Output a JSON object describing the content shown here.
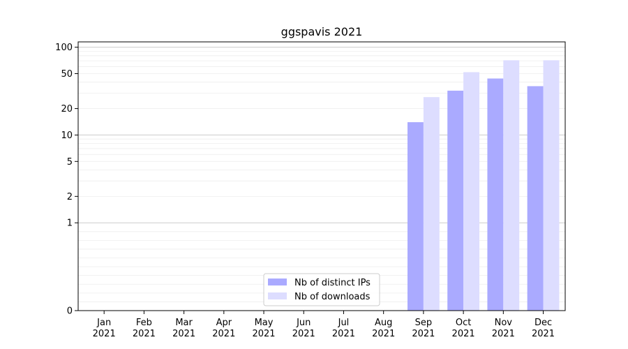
{
  "chart_data": {
    "type": "bar",
    "title": "ggspavis 2021",
    "xlabel": "",
    "ylabel": "",
    "y_scale": "symlog",
    "yticks": [
      0,
      1,
      2,
      5,
      10,
      20,
      50,
      100
    ],
    "categories": [
      {
        "month": "Jan",
        "year": "2021"
      },
      {
        "month": "Feb",
        "year": "2021"
      },
      {
        "month": "Mar",
        "year": "2021"
      },
      {
        "month": "Apr",
        "year": "2021"
      },
      {
        "month": "May",
        "year": "2021"
      },
      {
        "month": "Jun",
        "year": "2021"
      },
      {
        "month": "Jul",
        "year": "2021"
      },
      {
        "month": "Aug",
        "year": "2021"
      },
      {
        "month": "Sep",
        "year": "2021"
      },
      {
        "month": "Oct",
        "year": "2021"
      },
      {
        "month": "Nov",
        "year": "2021"
      },
      {
        "month": "Dec",
        "year": "2021"
      }
    ],
    "series": [
      {
        "name": "Nb of distinct IPs",
        "color": "#aaaaff",
        "values": [
          0,
          0,
          0,
          0,
          0,
          0,
          0,
          0,
          14,
          32,
          44,
          36
        ]
      },
      {
        "name": "Nb of downloads",
        "color": "#ddddff",
        "values": [
          0,
          0,
          0,
          0,
          0,
          0,
          0,
          0,
          27,
          52,
          71,
          71
        ]
      }
    ],
    "grid": "y",
    "legend": "lower center"
  }
}
